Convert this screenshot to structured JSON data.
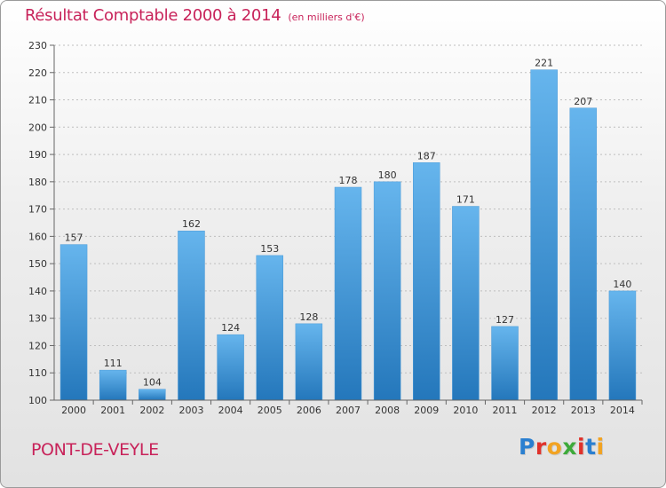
{
  "header": {
    "title": "Résultat Comptable 2000 à 2014",
    "unit": "(en milliers d'€)"
  },
  "footer": {
    "location": "PONT-DE-VEYLE",
    "brand": "Proxiti",
    "brand_colors": [
      "#2a7fd0",
      "#e0322b",
      "#f2a322",
      "#3daa3a",
      "#e0322b",
      "#2a7fd0",
      "#f2a322"
    ]
  },
  "colors": {
    "title": "#c8235a",
    "bar_light": "#66b5ed",
    "bar_dark": "#2477bb"
  },
  "chart_data": {
    "type": "bar",
    "title": "Résultat Comptable 2000 à 2014",
    "subtitle": "(en milliers d'€)",
    "categories": [
      "2000",
      "2001",
      "2002",
      "2003",
      "2004",
      "2005",
      "2006",
      "2007",
      "2008",
      "2009",
      "2010",
      "2011",
      "2012",
      "2013",
      "2014"
    ],
    "values": [
      157,
      111,
      104,
      162,
      124,
      153,
      128,
      178,
      180,
      187,
      171,
      127,
      221,
      207,
      140
    ],
    "ylim": [
      100,
      230
    ],
    "yticks": [
      100,
      110,
      120,
      130,
      140,
      150,
      160,
      170,
      180,
      190,
      200,
      210,
      220,
      230
    ],
    "grid": true,
    "data_labels": true
  }
}
